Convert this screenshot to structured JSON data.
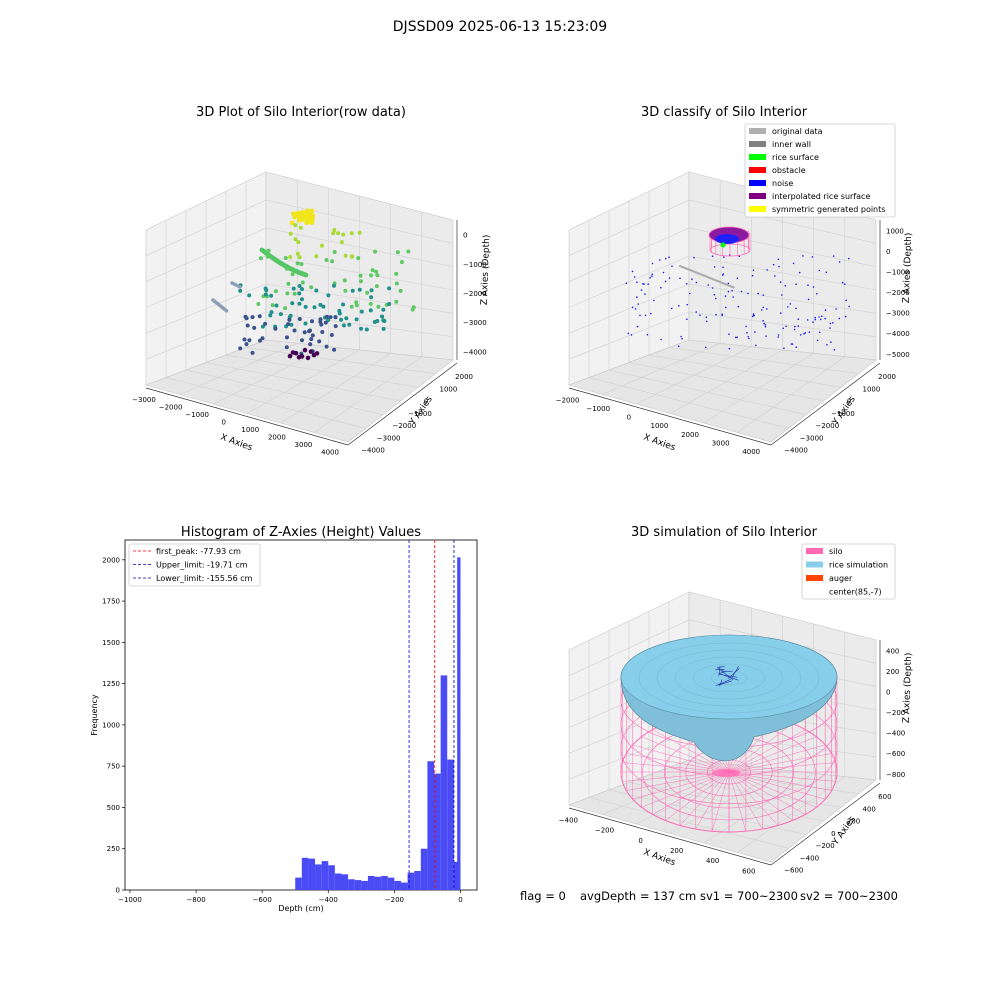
{
  "figure": {
    "suptitle": "DJSSD09 2025-06-13 15:23:09",
    "status": {
      "flag": "flag = 0",
      "avg_depth": "avgDepth = 137 cm",
      "sv1": "sv1 = 700~2300",
      "sv2": "sv2 = 700~2300"
    },
    "colors": {
      "pane_light": "#f2f2f2",
      "pane_mid": "#e6e6e6",
      "pane_dark": "#ebebeb",
      "grid": "#d0d0d0",
      "hist_bar": "#4b4bf5",
      "peak_line": "#ff0000",
      "limit_line": "#0000cc",
      "silo": "#ff69b4",
      "rice": "#87ceeb",
      "auger": "#ff4500"
    }
  },
  "chart_data": [
    {
      "id": "raw",
      "type": "scatter",
      "title": "3D Plot of Silo Interior(row data)",
      "xlabel": "X Axies",
      "ylabel": "Y Axies",
      "zlabel": "Z Axies (Depth)",
      "x_ticks": [
        "−3000",
        "−2000",
        "−1000",
        "0",
        "1000",
        "2000",
        "3000",
        "4000"
      ],
      "y_ticks": [
        "−4000",
        "−3000",
        "−2000",
        "−1000",
        "0",
        "1000",
        "2000"
      ],
      "z_ticks": [
        "−4000",
        "−3000",
        "−2000",
        "−1000",
        "0"
      ],
      "xlim": [
        -3000,
        4000
      ],
      "ylim": [
        -4000,
        2000
      ],
      "zlim": [
        -4200,
        0
      ],
      "colormap": "viridis"
    },
    {
      "id": "classify",
      "type": "scatter",
      "title": "3D classify of Silo Interior",
      "xlabel": "X Axies",
      "ylabel": "Y Axies",
      "zlabel": "Z Axies (Depth)",
      "x_ticks": [
        "−2000",
        "−1000",
        "0",
        "1000",
        "2000",
        "3000",
        "4000"
      ],
      "y_ticks": [
        "−4000",
        "−3000",
        "−2000",
        "−1000",
        "0",
        "1000",
        "2000"
      ],
      "z_ticks": [
        "−5000",
        "−4000",
        "−3000",
        "−2000",
        "−1000",
        "0",
        "1000"
      ],
      "xlim": [
        -2000,
        4000
      ],
      "ylim": [
        -4000,
        2000
      ],
      "zlim": [
        -5000,
        1000
      ],
      "legend_position": "upper right",
      "legend": [
        {
          "label": "original data",
          "color": "#b0b0b0"
        },
        {
          "label": "inner wall",
          "color": "#808080"
        },
        {
          "label": "rice surface",
          "color": "#00ff00"
        },
        {
          "label": "obstacle",
          "color": "#ff0000"
        },
        {
          "label": "noise",
          "color": "#0000ff"
        },
        {
          "label": "interpolated rice surface",
          "color": "#800080"
        },
        {
          "label": "symmetric generated points",
          "color": "#ffff00"
        }
      ]
    },
    {
      "id": "hist",
      "type": "bar",
      "title": "Histogram of Z-Axies (Height) Values",
      "xlabel": "Depth (cm)",
      "ylabel": "Frequency",
      "xlim": [
        -1015,
        50
      ],
      "ylim": [
        0,
        2120
      ],
      "x_ticks": [
        -1000,
        -800,
        -600,
        -400,
        -200,
        0
      ],
      "y_ticks": [
        0,
        250,
        500,
        750,
        1000,
        1250,
        1500,
        1750,
        2000
      ],
      "tick_labels_x": [
        "−1000",
        "−800",
        "−600",
        "−400",
        "−200",
        "0"
      ],
      "tick_labels_y": [
        "0",
        "250",
        "500",
        "750",
        "1000",
        "1250",
        "1500",
        "1750",
        "2000"
      ],
      "bin_width": 20,
      "bin_starts": [
        -500,
        -480,
        -460,
        -440,
        -420,
        -400,
        -380,
        -360,
        -340,
        -320,
        -300,
        -280,
        -260,
        -240,
        -220,
        -200,
        -180,
        -160,
        -140,
        -120,
        -100,
        -80,
        -60,
        -40,
        -20
      ],
      "values": [
        75,
        195,
        190,
        155,
        175,
        150,
        100,
        95,
        65,
        60,
        55,
        85,
        80,
        85,
        75,
        55,
        45,
        105,
        115,
        250,
        780,
        705,
        1300,
        790,
        170
      ],
      "extra_bars": [
        {
          "start": -10,
          "width": 10,
          "value": 2015
        }
      ],
      "vlines": [
        {
          "x": -77.93,
          "label": "first_peak: -77.93 cm",
          "color": "#ff0000"
        },
        {
          "x": -19.71,
          "label": "Upper_limit: -19.71 cm",
          "color": "#0000cc"
        },
        {
          "x": -155.56,
          "label": "Lower_limit: -155.56 cm",
          "color": "#0000cc"
        }
      ],
      "legend_position": "upper left"
    },
    {
      "id": "sim",
      "type": "surface",
      "title": "3D simulation of Silo Interior",
      "xlabel": "X Axies",
      "ylabel": "Y Axies",
      "zlabel": "Z Axies (Depth)",
      "x_ticks": [
        "−400",
        "−200",
        "0",
        "200",
        "400",
        "600"
      ],
      "y_ticks": [
        "−600",
        "−400",
        "−200",
        "0",
        "200",
        "400",
        "600"
      ],
      "z_ticks": [
        "−800",
        "−600",
        "−400",
        "−200",
        "0",
        "200",
        "400"
      ],
      "xlim": [
        -500,
        700
      ],
      "ylim": [
        -700,
        700
      ],
      "zlim": [
        -900,
        450
      ],
      "legend_position": "upper right",
      "legend": [
        {
          "label": "silo",
          "color": "#ff69b4"
        },
        {
          "label": "rice simulation",
          "color": "#87ceeb"
        },
        {
          "label": "auger",
          "color": "#ff4500"
        },
        {
          "label": "center(85,-7)",
          "color": ""
        }
      ]
    }
  ]
}
